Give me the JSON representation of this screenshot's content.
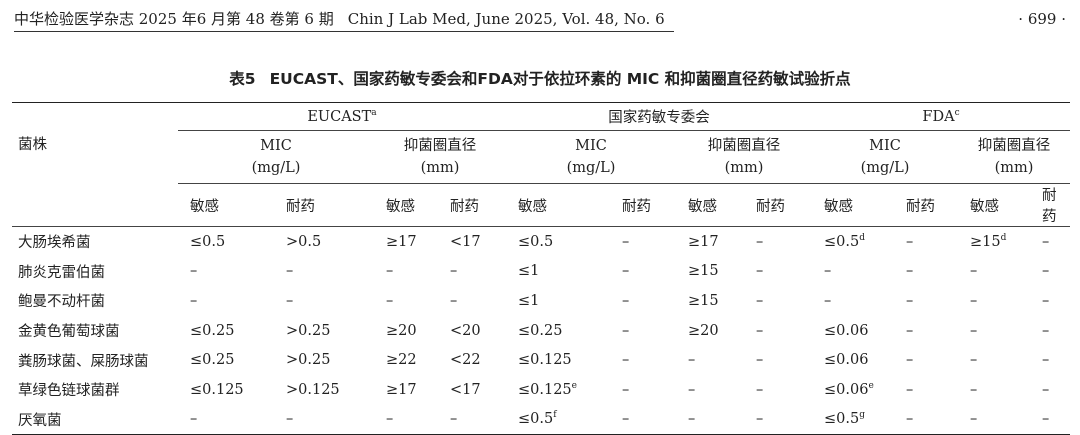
{
  "running_header": {
    "journal_cn": "中华检验医学杂志 2025 年6 月第 48 卷第 6 期",
    "journal_en": "Chin J Lab Med, June 2025, Vol. 48, No. 6",
    "page": "· 699 ·"
  },
  "caption": {
    "number": "表5",
    "title": "EUCAST、国家药敏专委会和FDA对于依拉环素的 MIC 和抑菌圈直径药敏试验折点"
  },
  "table": {
    "row_header": "菌株",
    "groups": [
      {
        "label": "EUCAST",
        "sup": "a"
      },
      {
        "label": "国家药敏专委会",
        "sup": ""
      },
      {
        "label": "FDA",
        "sup": "c"
      }
    ],
    "subgroups": {
      "mic": {
        "line1": "MIC",
        "line2": "(mg/L)"
      },
      "zone": {
        "line1": "抑菌圈直径",
        "line2": "(mm)"
      }
    },
    "leaf": {
      "s": "敏感",
      "r": "耐药"
    },
    "rows": [
      {
        "name": "大肠埃希菌",
        "cells": [
          {
            "t": "≤0.5",
            "s": ""
          },
          {
            "t": ">0.5",
            "s": ""
          },
          {
            "t": "≥17",
            "s": ""
          },
          {
            "t": "<17",
            "s": ""
          },
          {
            "t": "≤0.5",
            "s": ""
          },
          {
            "t": "–",
            "s": ""
          },
          {
            "t": "≥17",
            "s": ""
          },
          {
            "t": "–",
            "s": ""
          },
          {
            "t": "≤0.5",
            "s": "d"
          },
          {
            "t": "–",
            "s": ""
          },
          {
            "t": "≥15",
            "s": "d"
          },
          {
            "t": "–",
            "s": ""
          }
        ]
      },
      {
        "name": "肺炎克雷伯菌",
        "cells": [
          {
            "t": "–",
            "s": ""
          },
          {
            "t": "–",
            "s": ""
          },
          {
            "t": "–",
            "s": ""
          },
          {
            "t": "–",
            "s": ""
          },
          {
            "t": "≤1",
            "s": ""
          },
          {
            "t": "–",
            "s": ""
          },
          {
            "t": "≥15",
            "s": ""
          },
          {
            "t": "–",
            "s": ""
          },
          {
            "t": "–",
            "s": ""
          },
          {
            "t": "–",
            "s": ""
          },
          {
            "t": "–",
            "s": ""
          },
          {
            "t": "–",
            "s": ""
          }
        ]
      },
      {
        "name": "鲍曼不动杆菌",
        "cells": [
          {
            "t": "–",
            "s": ""
          },
          {
            "t": "–",
            "s": ""
          },
          {
            "t": "–",
            "s": ""
          },
          {
            "t": "–",
            "s": ""
          },
          {
            "t": "≤1",
            "s": ""
          },
          {
            "t": "–",
            "s": ""
          },
          {
            "t": "≥15",
            "s": ""
          },
          {
            "t": "–",
            "s": ""
          },
          {
            "t": "–",
            "s": ""
          },
          {
            "t": "–",
            "s": ""
          },
          {
            "t": "–",
            "s": ""
          },
          {
            "t": "–",
            "s": ""
          }
        ]
      },
      {
        "name": "金黄色葡萄球菌",
        "cells": [
          {
            "t": "≤0.25",
            "s": ""
          },
          {
            "t": ">0.25",
            "s": ""
          },
          {
            "t": "≥20",
            "s": ""
          },
          {
            "t": "<20",
            "s": ""
          },
          {
            "t": "≤0.25",
            "s": ""
          },
          {
            "t": "–",
            "s": ""
          },
          {
            "t": "≥20",
            "s": ""
          },
          {
            "t": "–",
            "s": ""
          },
          {
            "t": "≤0.06",
            "s": ""
          },
          {
            "t": "–",
            "s": ""
          },
          {
            "t": "–",
            "s": ""
          },
          {
            "t": "–",
            "s": ""
          }
        ]
      },
      {
        "name": "粪肠球菌、屎肠球菌",
        "cells": [
          {
            "t": "≤0.25",
            "s": ""
          },
          {
            "t": ">0.25",
            "s": ""
          },
          {
            "t": "≥22",
            "s": ""
          },
          {
            "t": "<22",
            "s": ""
          },
          {
            "t": "≤0.125",
            "s": ""
          },
          {
            "t": "–",
            "s": ""
          },
          {
            "t": "–",
            "s": ""
          },
          {
            "t": "–",
            "s": ""
          },
          {
            "t": "≤0.06",
            "s": ""
          },
          {
            "t": "–",
            "s": ""
          },
          {
            "t": "–",
            "s": ""
          },
          {
            "t": "–",
            "s": ""
          }
        ]
      },
      {
        "name": "草绿色链球菌群",
        "cells": [
          {
            "t": "≤0.125",
            "s": ""
          },
          {
            "t": ">0.125",
            "s": ""
          },
          {
            "t": "≥17",
            "s": ""
          },
          {
            "t": "<17",
            "s": ""
          },
          {
            "t": "≤0.125",
            "s": "e"
          },
          {
            "t": "–",
            "s": ""
          },
          {
            "t": "–",
            "s": ""
          },
          {
            "t": "–",
            "s": ""
          },
          {
            "t": "≤0.06",
            "s": "e"
          },
          {
            "t": "–",
            "s": ""
          },
          {
            "t": "–",
            "s": ""
          },
          {
            "t": "–",
            "s": ""
          }
        ]
      },
      {
        "name": "厌氧菌",
        "cells": [
          {
            "t": "–",
            "s": ""
          },
          {
            "t": "–",
            "s": ""
          },
          {
            "t": "–",
            "s": ""
          },
          {
            "t": "–",
            "s": ""
          },
          {
            "t": "≤0.5",
            "s": "f"
          },
          {
            "t": "–",
            "s": ""
          },
          {
            "t": "–",
            "s": ""
          },
          {
            "t": "–",
            "s": ""
          },
          {
            "t": "≤0.5",
            "s": "g"
          },
          {
            "t": "–",
            "s": ""
          },
          {
            "t": "–",
            "s": ""
          },
          {
            "t": "–",
            "s": ""
          }
        ]
      }
    ]
  }
}
